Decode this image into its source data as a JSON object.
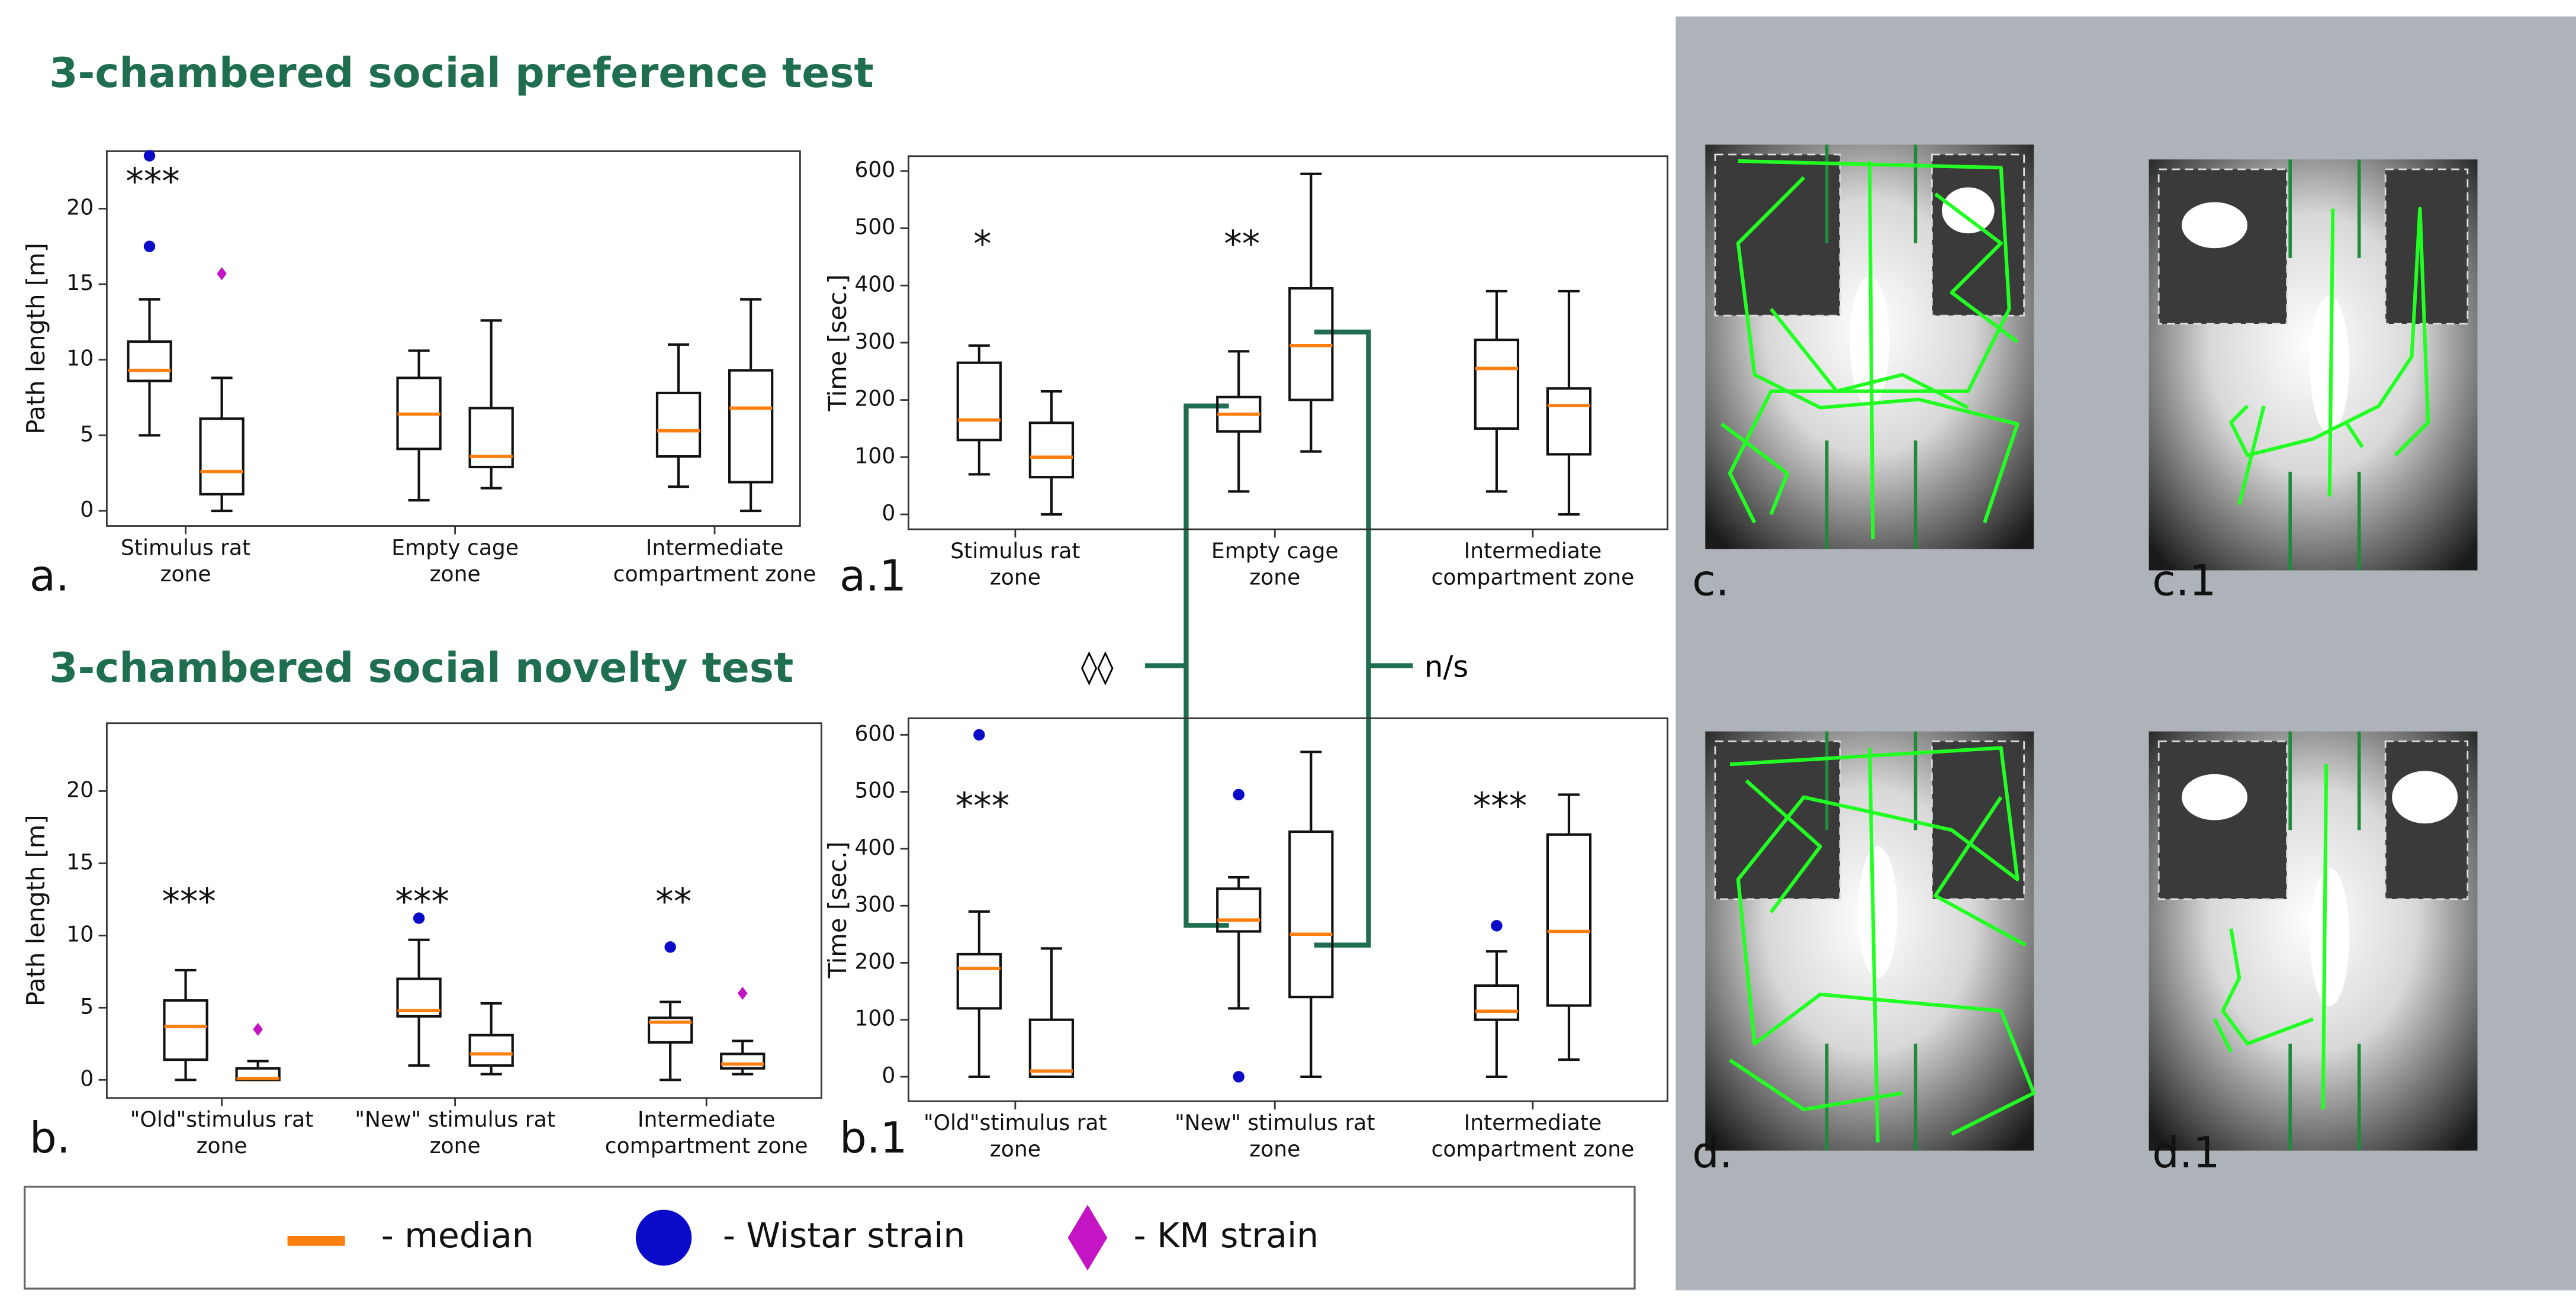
{
  "titles": [
    "3-chambered social preference test",
    "3-chambered social novelty test"
  ],
  "panel_labels": [
    "a.",
    "a.1",
    "b.",
    "b.1",
    "c.",
    "c.1",
    "d.",
    "d.1"
  ],
  "comparison_labels": [
    "◊◊",
    "n/s"
  ],
  "legend": {
    "median": {
      "label": "- median",
      "color": "#ff7f0e"
    },
    "series": [
      {
        "label": "- Wistar strain",
        "color": "#0a0ac8"
      },
      {
        "label": "- KM strain",
        "color": "#c414c4"
      }
    ]
  },
  "chart_data": [
    {
      "type": "box",
      "ylabel": "Path length [m]",
      "categories": [
        "Stimulus rat\nzone",
        "Empty cage\nzone",
        "Intermediate\ncompartment zone"
      ],
      "ylim": [
        -1,
        23.8
      ],
      "yticks": [
        0,
        5,
        10,
        15,
        20
      ],
      "significance": [
        "***",
        null,
        null
      ],
      "series": [
        {
          "boxes": [
            {
              "min": 5,
              "q1": 8.6,
              "median": 9.3,
              "q3": 11.2,
              "max": 14,
              "outliers": [
                17.5,
                23.5
              ]
            },
            {
              "min": 0.7,
              "q1": 4.1,
              "median": 6.4,
              "q3": 8.8,
              "max": 10.6,
              "outliers": []
            },
            {
              "min": 1.6,
              "q1": 3.6,
              "median": 5.3,
              "q3": 7.8,
              "max": 11,
              "outliers": []
            }
          ]
        },
        {
          "boxes": [
            {
              "min": 0,
              "q1": 1.1,
              "median": 2.6,
              "q3": 6.1,
              "max": 8.8,
              "outliers": [
                15.7
              ]
            },
            {
              "min": 1.5,
              "q1": 2.9,
              "median": 3.6,
              "q3": 6.8,
              "max": 12.6,
              "outliers": []
            },
            {
              "min": 0,
              "q1": 1.9,
              "median": 6.8,
              "q3": 9.3,
              "max": 14,
              "outliers": []
            }
          ]
        }
      ]
    },
    {
      "type": "box",
      "ylabel": "Time [sec.]",
      "categories": [
        "Stimulus rat\nzone",
        "Empty cage\nzone",
        "Intermediate\ncompartment zone"
      ],
      "ylim": [
        -26,
        626
      ],
      "yticks": [
        0,
        100,
        200,
        300,
        400,
        500,
        600
      ],
      "significance": [
        "*",
        "**",
        null
      ],
      "series": [
        {
          "boxes": [
            {
              "min": 70,
              "q1": 130,
              "median": 165,
              "q3": 265,
              "max": 295,
              "outliers": []
            },
            {
              "min": 40,
              "q1": 145,
              "median": 175,
              "q3": 205,
              "max": 285,
              "outliers": []
            },
            {
              "min": 40,
              "q1": 150,
              "median": 255,
              "q3": 305,
              "max": 390,
              "outliers": []
            }
          ]
        },
        {
          "boxes": [
            {
              "min": 0,
              "q1": 65,
              "median": 100,
              "q3": 160,
              "max": 215,
              "outliers": []
            },
            {
              "min": 110,
              "q1": 200,
              "median": 295,
              "q3": 395,
              "max": 595,
              "outliers": []
            },
            {
              "min": 0,
              "q1": 105,
              "median": 190,
              "q3": 220,
              "max": 390,
              "outliers": []
            }
          ]
        }
      ]
    },
    {
      "type": "box",
      "ylabel": "Path length [m]",
      "categories": [
        "\"Old\"stimulus rat\nzone",
        "\"New\" stimulus rat\nzone",
        "Intermediate\ncompartment zone"
      ],
      "ylim": [
        -1.25,
        24.7
      ],
      "yticks": [
        0,
        5,
        10,
        15,
        20
      ],
      "significance": [
        "***",
        "***",
        "**"
      ],
      "series": [
        {
          "boxes": [
            {
              "min": 0,
              "q1": 1.4,
              "median": 3.7,
              "q3": 5.5,
              "max": 7.6,
              "outliers": []
            },
            {
              "min": 1,
              "q1": 4.4,
              "median": 4.8,
              "q3": 7,
              "max": 9.7,
              "outliers": [
                11.2
              ]
            },
            {
              "min": 0,
              "q1": 2.6,
              "median": 4,
              "q3": 4.3,
              "max": 5.4,
              "outliers": [
                9.2
              ]
            }
          ]
        },
        {
          "boxes": [
            {
              "min": 0,
              "q1": 0,
              "median": 0.1,
              "q3": 0.8,
              "max": 1.3,
              "outliers": [
                3.5
              ]
            },
            {
              "min": 0.4,
              "q1": 1,
              "median": 1.8,
              "q3": 3.1,
              "max": 5.3,
              "outliers": []
            },
            {
              "min": 0.4,
              "q1": 0.8,
              "median": 1.1,
              "q3": 1.8,
              "max": 2.7,
              "outliers": [
                6
              ]
            }
          ]
        }
      ]
    },
    {
      "type": "box",
      "ylabel": "Time [sec.]",
      "categories": [
        "\"Old\"stimulus rat\nzone",
        "\"New\" stimulus rat\nzone",
        "Intermediate\ncompartment zone"
      ],
      "ylim": [
        -43,
        629
      ],
      "yticks": [
        0,
        100,
        200,
        300,
        400,
        500,
        600
      ],
      "significance": [
        "***",
        null,
        "***"
      ],
      "series": [
        {
          "boxes": [
            {
              "min": 0,
              "q1": 120,
              "median": 190,
              "q3": 215,
              "max": 290,
              "outliers": [
                600
              ]
            },
            {
              "min": 120,
              "q1": 255,
              "median": 275,
              "q3": 330,
              "max": 350,
              "outliers": [
                0,
                495
              ]
            },
            {
              "min": 0,
              "q1": 100,
              "median": 115,
              "q3": 160,
              "max": 220,
              "outliers": [
                265
              ]
            }
          ]
        },
        {
          "boxes": [
            {
              "min": 0,
              "q1": 0,
              "median": 10,
              "q3": 100,
              "max": 225,
              "outliers": []
            },
            {
              "min": 0,
              "q1": 140,
              "median": 250,
              "q3": 430,
              "max": 570,
              "outliers": []
            },
            {
              "min": 30,
              "q1": 125,
              "median": 255,
              "q3": 425,
              "max": 495,
              "outliers": []
            }
          ]
        }
      ]
    }
  ]
}
